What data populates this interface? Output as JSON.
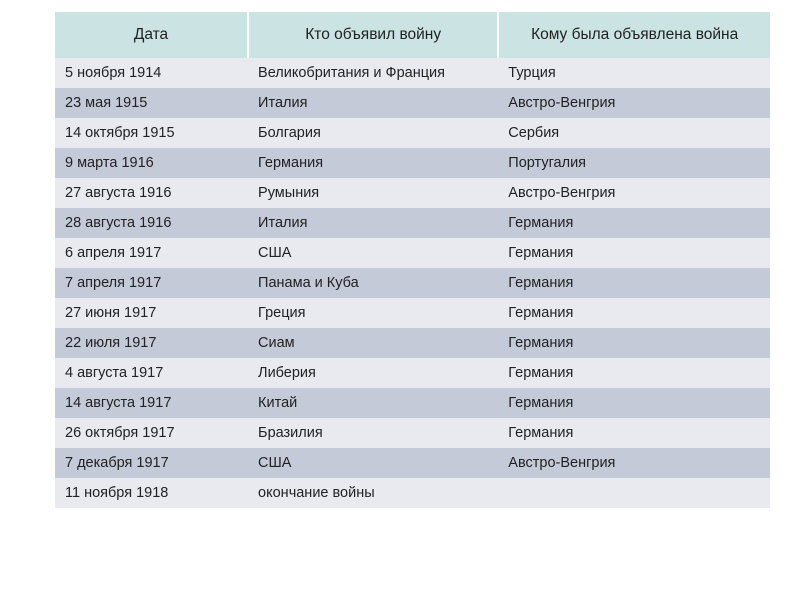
{
  "table": {
    "header_bg": "#cce3e4",
    "header_border": "#ffffff",
    "row_even_bg": "#e8eaf0",
    "row_odd_bg": "#c5cad8",
    "text_color": "#222222",
    "header_fontsize": 15.5,
    "cell_fontsize": 14.5,
    "columns": [
      {
        "label": "Дата"
      },
      {
        "label": "Кто объявил войну"
      },
      {
        "label": "Кому была объявлена война"
      }
    ],
    "rows": [
      {
        "date": "5 ноября 1914",
        "who": "Великобритания и Франция",
        "whom": "Турция"
      },
      {
        "date": "23 мая 1915",
        "who": "Италия",
        "whom": "Австро-Венгрия"
      },
      {
        "date": "14 октября 1915",
        "who": "Болгария",
        "whom": "Сербия"
      },
      {
        "date": "9 марта 1916",
        "who": "Германия",
        "whom": "Португалия"
      },
      {
        "date": "27 августа 1916",
        "who": "Румыния",
        "whom": "Австро-Венгрия"
      },
      {
        "date": "28 августа 1916",
        "who": "Италия",
        "whom": "Германия"
      },
      {
        "date": "6 апреля 1917",
        "who": "США",
        "whom": "Германия"
      },
      {
        "date": "7 апреля 1917",
        "who": "Панама и Куба",
        "whom": "Германия"
      },
      {
        "date": "27 июня 1917",
        "who": "Греция",
        "whom": "Германия"
      },
      {
        "date": "22 июля 1917",
        "who": "Сиам",
        "whom": "Германия"
      },
      {
        "date": "4 августа 1917",
        "who": "Либерия",
        "whom": "Германия"
      },
      {
        "date": "14 августа 1917",
        "who": "Китай",
        "whom": "Германия"
      },
      {
        "date": "26 октября 1917",
        "who": "Бразилия",
        "whom": "Германия"
      },
      {
        "date": "7 декабря 1917",
        "who": "США",
        "whom": "Австро-Венгрия"
      },
      {
        "date": "11 ноября 1918",
        "who": "окончание войны",
        "whom": ""
      }
    ]
  }
}
